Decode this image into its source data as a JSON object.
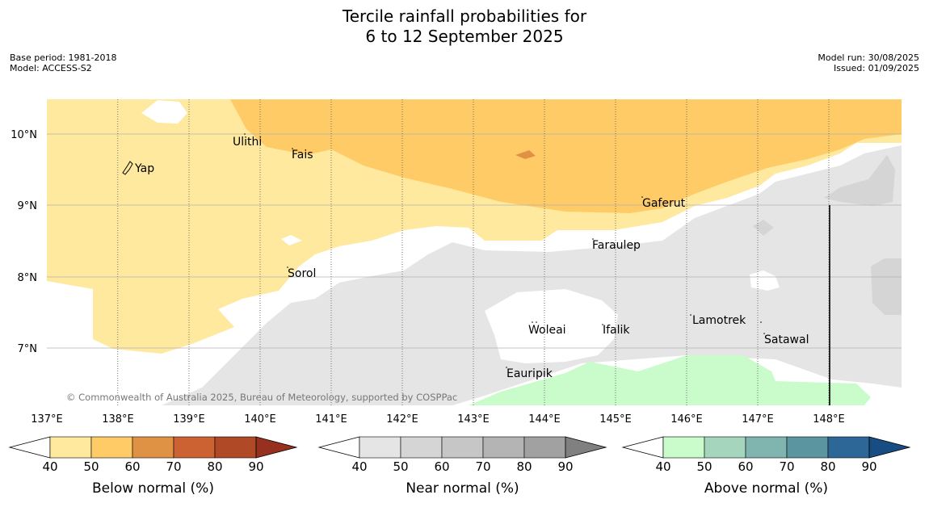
{
  "title": {
    "line1": "Tercile rainfall probabilities for",
    "line2": "6 to 12 September 2025"
  },
  "meta": {
    "base_period": "Base period: 1981-2018",
    "model": "Model: ACCESS-S2",
    "model_run": "Model run: 30/08/2025",
    "issued": "Issued: 01/09/2025"
  },
  "map": {
    "longitude_labels": [
      "137°E",
      "138°E",
      "139°E",
      "140°E",
      "141°E",
      "142°E",
      "143°E",
      "144°E",
      "145°E",
      "146°E",
      "147°E",
      "148°E"
    ],
    "latitude_labels": [
      "10°N",
      "9°N",
      "8°N",
      "7°N"
    ],
    "places": [
      "Yap",
      "Ulithi",
      "Fais",
      "Gaferut",
      "Faraulep",
      "Sorol",
      "Woleai",
      "Ifalik",
      "Lamotrek",
      "Satawal",
      "Eauripik"
    ],
    "copyright": "© Commonwealth of Australia 2025, Bureau of Meteorology, supported by COSPPac"
  },
  "legends": [
    {
      "label": "Below normal (%)",
      "ticks": [
        "40",
        "50",
        "60",
        "70",
        "80",
        "90"
      ],
      "colors": [
        "#fee99e",
        "#fecb66",
        "#e09244",
        "#cc6232",
        "#b04a26",
        "#97301f"
      ]
    },
    {
      "label": "Near normal (%)",
      "ticks": [
        "40",
        "50",
        "60",
        "70",
        "80",
        "90"
      ],
      "colors": [
        "#e5e5e5",
        "#d5d5d5",
        "#c6c6c6",
        "#b4b4b4",
        "#a1a1a1",
        "#808080"
      ]
    },
    {
      "label": "Above normal (%)",
      "ticks": [
        "40",
        "50",
        "60",
        "70",
        "80",
        "90"
      ],
      "colors": [
        "#c9fbcb",
        "#a5d6bd",
        "#80b5af",
        "#5b96a0",
        "#2d6797",
        "#174d83"
      ]
    }
  ]
}
